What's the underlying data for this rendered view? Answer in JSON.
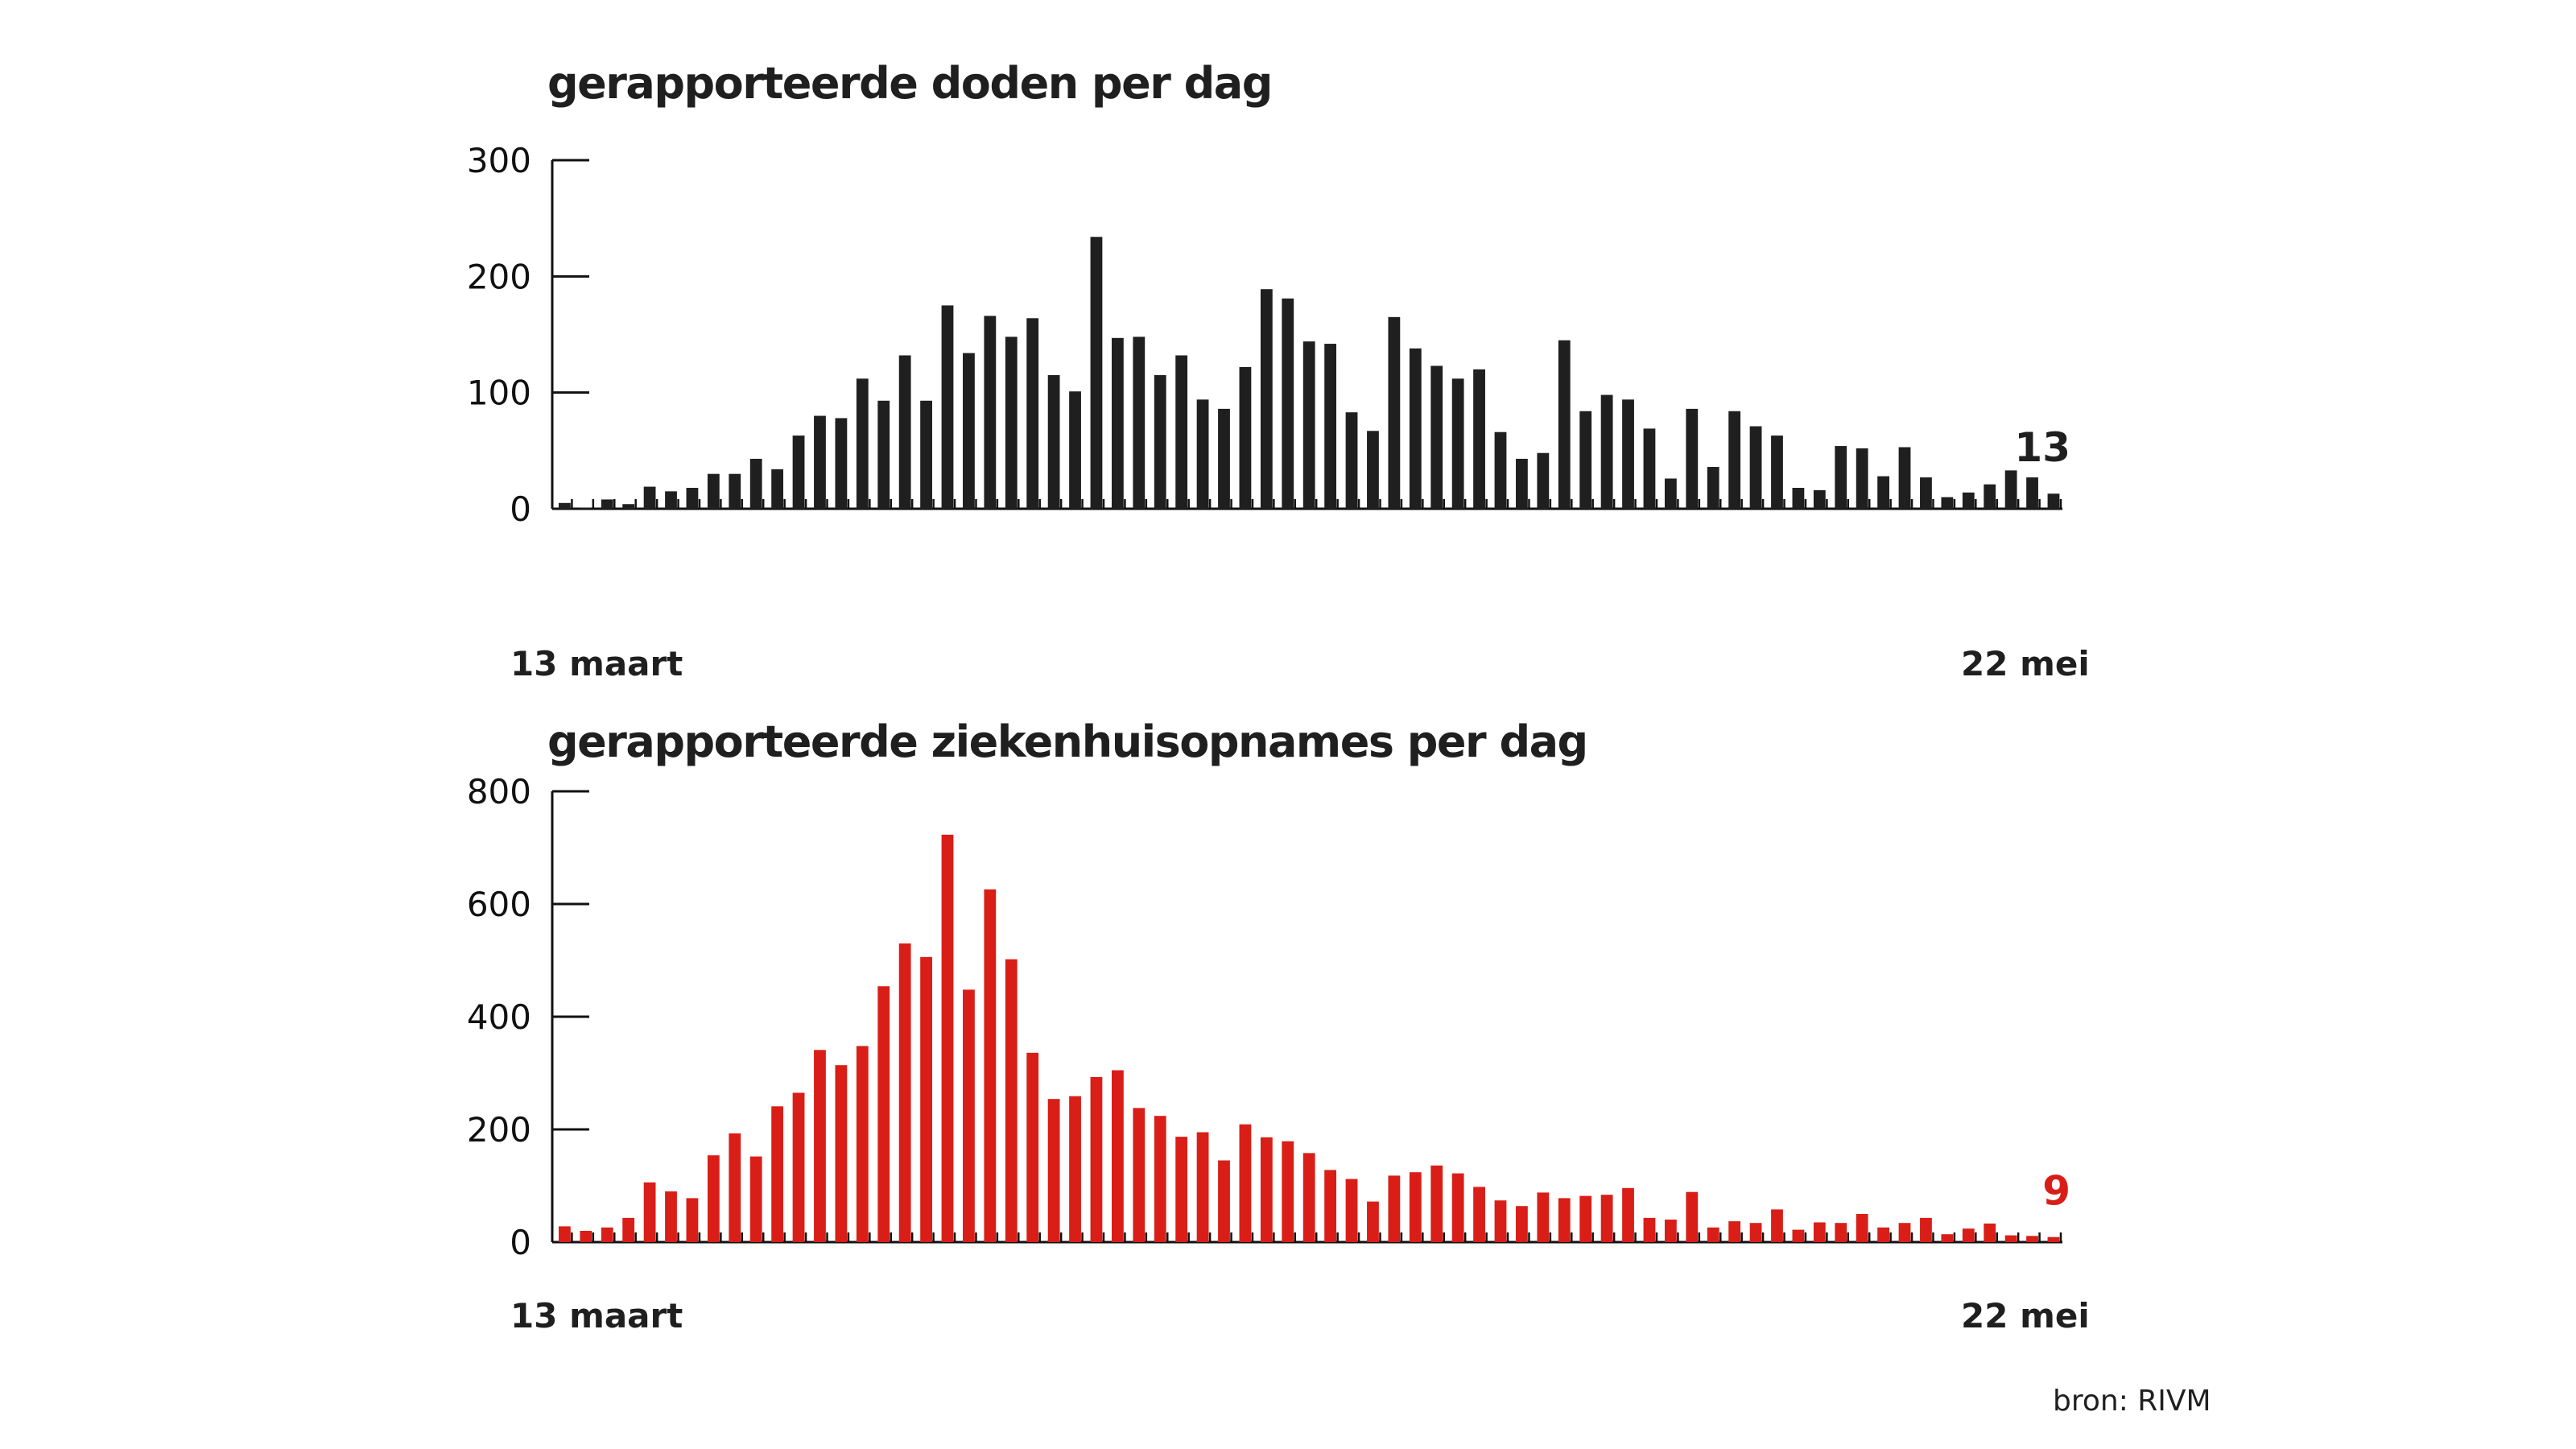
{
  "colors": {
    "deaths_bar": "#1f1f1f",
    "admissions_bar": "#d91e18",
    "axis": "#111111",
    "text": "#1f1f1f"
  },
  "charts": [
    {
      "title": "gerapporteerde doden per dag",
      "start_label": "13 maart",
      "end_label": "22 mei",
      "end_value_label": "13"
    },
    {
      "title": "gerapporteerde ziekenhuisopnames per dag",
      "start_label": "13 maart",
      "end_label": "22 mei",
      "end_value_label": "9"
    }
  ],
  "source": "bron: RIVM",
  "chart_data": [
    {
      "type": "bar",
      "title": "gerapporteerde doden per dag",
      "xlabel": "",
      "ylabel": "",
      "x_start": "13 maart",
      "x_end": "22 mei",
      "yticks": [
        0,
        100,
        200,
        300
      ],
      "ylim": [
        0,
        300
      ],
      "grid": false,
      "legend": null,
      "annotation": {
        "text": "13",
        "position": "last bar"
      },
      "color": "#1f1f1f",
      "values": [
        5,
        1,
        8,
        4,
        19,
        15,
        18,
        30,
        30,
        43,
        34,
        63,
        80,
        78,
        112,
        93,
        132,
        93,
        175,
        134,
        166,
        148,
        164,
        115,
        101,
        234,
        147,
        148,
        115,
        132,
        94,
        86,
        122,
        189,
        181,
        144,
        142,
        83,
        67,
        165,
        138,
        123,
        112,
        120,
        66,
        43,
        48,
        145,
        84,
        98,
        94,
        69,
        26,
        86,
        36,
        84,
        71,
        63,
        18,
        16,
        54,
        52,
        28,
        53,
        27,
        10,
        14,
        21,
        33,
        27,
        13
      ]
    },
    {
      "type": "bar",
      "title": "gerapporteerde ziekenhuisopnames per dag",
      "xlabel": "",
      "ylabel": "",
      "x_start": "13 maart",
      "x_end": "22 mei",
      "yticks": [
        0,
        200,
        400,
        600,
        800
      ],
      "ylim": [
        0,
        800
      ],
      "grid": false,
      "legend": null,
      "annotation": {
        "text": "9",
        "position": "last bar"
      },
      "color": "#d91e18",
      "values": [
        28,
        20,
        26,
        43,
        106,
        90,
        78,
        154,
        193,
        152,
        241,
        265,
        341,
        314,
        348,
        454,
        530,
        506,
        723,
        448,
        626,
        502,
        336,
        254,
        259,
        293,
        305,
        238,
        224,
        187,
        195,
        145,
        209,
        186,
        179,
        158,
        128,
        112,
        72,
        118,
        124,
        136,
        122,
        98,
        74,
        64,
        88,
        78,
        82,
        84,
        96,
        43,
        40,
        89,
        26,
        37,
        34,
        58,
        22,
        35,
        34,
        50,
        26,
        34,
        43,
        14,
        24,
        33,
        12,
        11,
        9
      ]
    }
  ]
}
